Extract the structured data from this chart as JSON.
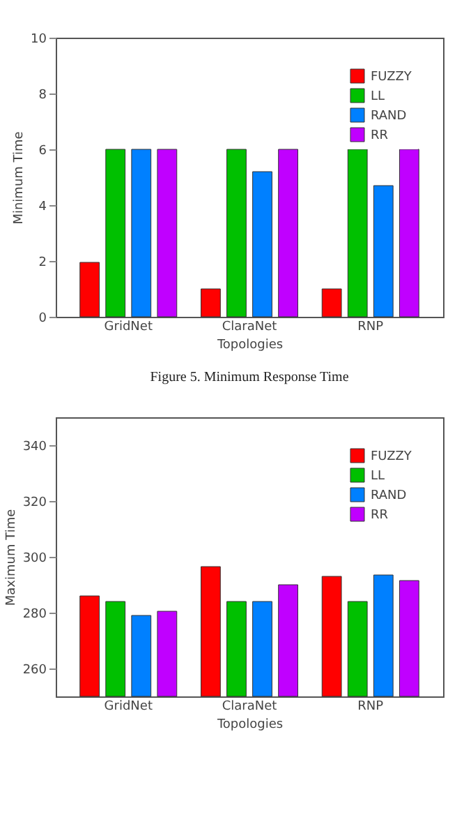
{
  "chart_data": [
    {
      "type": "bar",
      "xlabel": "Topologies",
      "ylabel": "Minimum Time",
      "categories": [
        "GridNet",
        "ClaraNet",
        "RNP"
      ],
      "series": [
        {
          "name": "FUZZY",
          "color": "#ff0000",
          "values": [
            1.95,
            1,
            1
          ]
        },
        {
          "name": "LL",
          "color": "#00c000",
          "values": [
            6,
            6,
            6
          ]
        },
        {
          "name": "RAND",
          "color": "#0080ff",
          "values": [
            6,
            5.2,
            4.7
          ]
        },
        {
          "name": "RR",
          "color": "#c000ff",
          "values": [
            6,
            6,
            6
          ]
        }
      ],
      "ylim": [
        0,
        10
      ],
      "yticks": [
        0,
        2,
        4,
        6,
        8,
        10
      ],
      "grid": false,
      "legend": "top right",
      "annotations": [
        "Figure 5.    Minimum Response Time"
      ]
    },
    {
      "type": "bar",
      "xlabel": "Topologies",
      "ylabel": "Maximum Time",
      "categories": [
        "GridNet",
        "ClaraNet",
        "RNP"
      ],
      "series": [
        {
          "name": "FUZZY",
          "color": "#ff0000",
          "values": [
            286,
            296.5,
            293
          ]
        },
        {
          "name": "LL",
          "color": "#00c000",
          "values": [
            284,
            284,
            284
          ]
        },
        {
          "name": "RAND",
          "color": "#0080ff",
          "values": [
            279,
            284,
            293.5
          ]
        },
        {
          "name": "RR",
          "color": "#c000ff",
          "values": [
            280.5,
            290,
            291.5
          ]
        }
      ],
      "ylim": [
        250,
        350
      ],
      "yticks": [
        260,
        280,
        300,
        320,
        340
      ],
      "grid": false,
      "legend": "top right"
    }
  ]
}
